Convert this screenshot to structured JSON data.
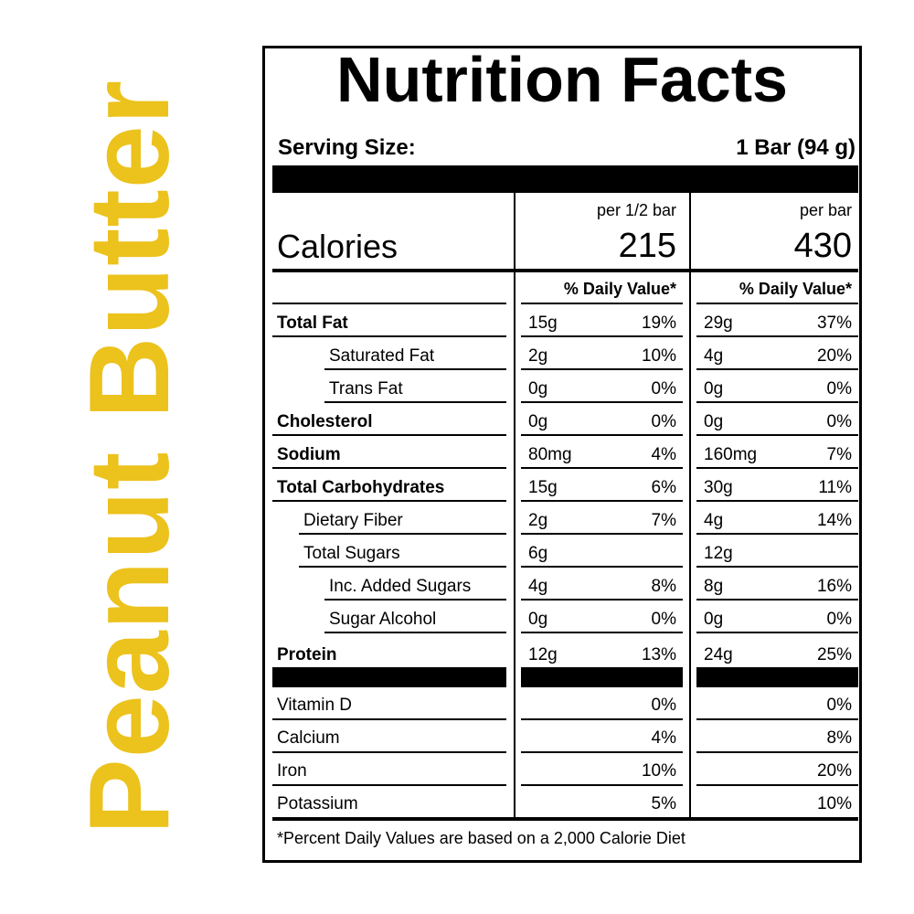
{
  "side_title": "Peanut Butter",
  "title": "Nutrition Facts",
  "serving": {
    "label": "Serving Size:",
    "value": "1 Bar (94 g)"
  },
  "columns": {
    "half": "per 1/2 bar",
    "full": "per bar"
  },
  "calories": {
    "label": "Calories",
    "half": "215",
    "full": "430"
  },
  "dv_header": "% Daily Value*",
  "nutrients": [
    {
      "name": "Total Fat",
      "bold": true,
      "indent": 0,
      "half_amt": "15g",
      "half_dv": "19%",
      "full_amt": "29g",
      "full_dv": "37%"
    },
    {
      "name": "Saturated Fat",
      "bold": false,
      "indent": 2,
      "half_amt": "2g",
      "half_dv": "10%",
      "full_amt": "4g",
      "full_dv": "20%"
    },
    {
      "name": "Trans Fat",
      "bold": false,
      "indent": 2,
      "half_amt": "0g",
      "half_dv": "0%",
      "full_amt": "0g",
      "full_dv": "0%"
    },
    {
      "name": "Cholesterol",
      "bold": true,
      "indent": 0,
      "half_amt": "0g",
      "half_dv": "0%",
      "full_amt": "0g",
      "full_dv": "0%"
    },
    {
      "name": "Sodium",
      "bold": true,
      "indent": 0,
      "half_amt": "80mg",
      "half_dv": "4%",
      "full_amt": "160mg",
      "full_dv": "7%"
    },
    {
      "name": "Total Carbohydrates",
      "bold": true,
      "indent": 0,
      "half_amt": "15g",
      "half_dv": "6%",
      "full_amt": "30g",
      "full_dv": "11%"
    },
    {
      "name": "Dietary Fiber",
      "bold": false,
      "indent": 1,
      "half_amt": "2g",
      "half_dv": "7%",
      "full_amt": "4g",
      "full_dv": "14%"
    },
    {
      "name": "Total Sugars",
      "bold": false,
      "indent": 1,
      "half_amt": "6g",
      "half_dv": "",
      "full_amt": "12g",
      "full_dv": ""
    },
    {
      "name": "Inc. Added Sugars",
      "bold": false,
      "indent": 2,
      "half_amt": "4g",
      "half_dv": "8%",
      "full_amt": "8g",
      "full_dv": "16%"
    },
    {
      "name": "Sugar Alcohol",
      "bold": false,
      "indent": 2,
      "half_amt": "0g",
      "half_dv": "0%",
      "full_amt": "0g",
      "full_dv": "0%"
    },
    {
      "name": "Protein",
      "bold": true,
      "indent": 0,
      "half_amt": "12g",
      "half_dv": "13%",
      "full_amt": "24g",
      "full_dv": "25%"
    }
  ],
  "vitamins": [
    {
      "name": "Vitamin D",
      "half_dv": "0%",
      "full_dv": "0%"
    },
    {
      "name": "Calcium",
      "half_dv": "4%",
      "full_dv": "8%"
    },
    {
      "name": "Iron",
      "half_dv": "10%",
      "full_dv": "20%"
    },
    {
      "name": "Potassium",
      "half_dv": "5%",
      "full_dv": "10%"
    }
  ],
  "footnote": "*Percent Daily Values are based on a 2,000 Calorie Diet",
  "colors": {
    "accent": "#ecc21c",
    "ink": "#000000"
  }
}
